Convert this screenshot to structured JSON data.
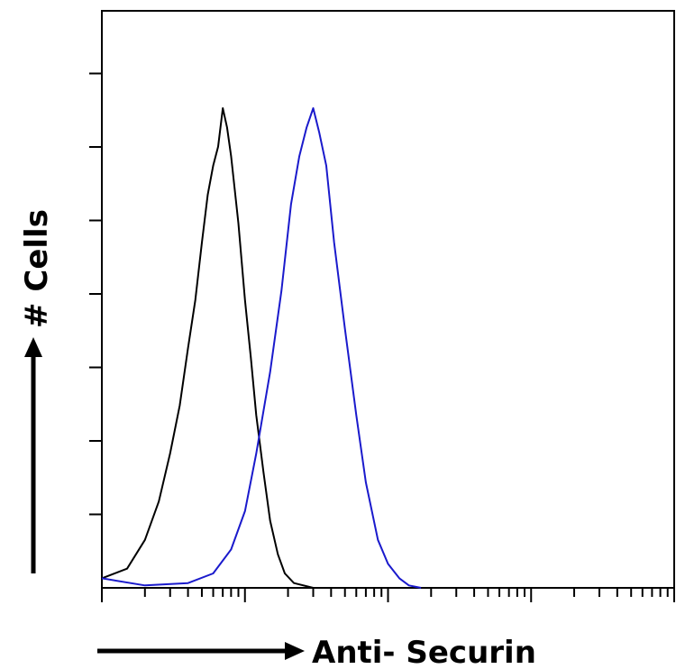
{
  "chart_data": {
    "type": "line",
    "title": "",
    "xlabel": "Anti- Securin",
    "ylabel": "# Cells",
    "x_scale": "log",
    "xlim": [
      1,
      10000
    ],
    "ylim": [
      0,
      100
    ],
    "legend": "none",
    "grid": false,
    "series": [
      {
        "color": "#000000",
        "points": [
          [
            1.0,
            2
          ],
          [
            1.5,
            4
          ],
          [
            2.0,
            10
          ],
          [
            2.5,
            18
          ],
          [
            3.0,
            28
          ],
          [
            3.5,
            38
          ],
          [
            4.0,
            50
          ],
          [
            4.5,
            60
          ],
          [
            5.0,
            72
          ],
          [
            5.5,
            82
          ],
          [
            6.0,
            88
          ],
          [
            6.5,
            92
          ],
          [
            7.0,
            100
          ],
          [
            7.5,
            96
          ],
          [
            8.0,
            90
          ],
          [
            9.0,
            76
          ],
          [
            10.0,
            60
          ],
          [
            11.0,
            48
          ],
          [
            12.0,
            36
          ],
          [
            13.5,
            24
          ],
          [
            15.0,
            14
          ],
          [
            17.0,
            7
          ],
          [
            19.0,
            3
          ],
          [
            22.0,
            1
          ],
          [
            30.0,
            0
          ]
        ]
      },
      {
        "color": "#1a1acc",
        "points": [
          [
            1.0,
            2
          ],
          [
            2.0,
            0.5
          ],
          [
            4.0,
            1
          ],
          [
            6.0,
            3
          ],
          [
            8.0,
            8
          ],
          [
            10.0,
            16
          ],
          [
            12.0,
            28
          ],
          [
            15.0,
            45
          ],
          [
            18.0,
            62
          ],
          [
            21.0,
            80
          ],
          [
            24.0,
            90
          ],
          [
            27.0,
            96
          ],
          [
            30.0,
            100
          ],
          [
            33.0,
            95
          ],
          [
            37.0,
            88
          ],
          [
            42.0,
            72
          ],
          [
            50.0,
            54
          ],
          [
            60.0,
            36
          ],
          [
            70.0,
            22
          ],
          [
            85.0,
            10
          ],
          [
            100.0,
            5
          ],
          [
            120.0,
            2
          ],
          [
            140.0,
            0.5
          ],
          [
            170.0,
            0
          ]
        ]
      }
    ]
  }
}
